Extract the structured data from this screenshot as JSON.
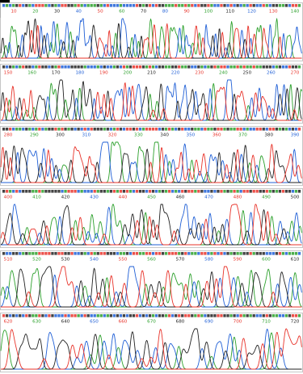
{
  "chart_data": {
    "type": "line",
    "title": "",
    "colors": {
      "A": "#2ca02c",
      "C": "#1f5fd6",
      "G": "#222222",
      "T": "#e8332a"
    },
    "tick_colors": [
      "#e8332a",
      "#2ca02c",
      "#222222",
      "#1f5fd6"
    ],
    "panels": [
      {
        "ticks": [
          10,
          20,
          30,
          40,
          50,
          60,
          70,
          80,
          90,
          100,
          110,
          120,
          130,
          140
        ]
      },
      {
        "ticks": [
          150,
          160,
          170,
          180,
          190,
          200,
          210,
          220,
          230,
          240,
          250,
          260,
          270
        ]
      },
      {
        "ticks": [
          280,
          290,
          300,
          310,
          320,
          330,
          340,
          350,
          360,
          370,
          380,
          390
        ]
      },
      {
        "ticks": [
          400,
          410,
          420,
          430,
          440,
          450,
          460,
          470,
          480,
          490,
          500
        ]
      },
      {
        "ticks": [
          510,
          520,
          530,
          540,
          550,
          560,
          570,
          580,
          590,
          600,
          610
        ]
      },
      {
        "ticks": [
          620,
          630,
          640,
          650,
          660,
          670,
          680,
          690,
          700,
          710,
          720
        ]
      }
    ]
  }
}
